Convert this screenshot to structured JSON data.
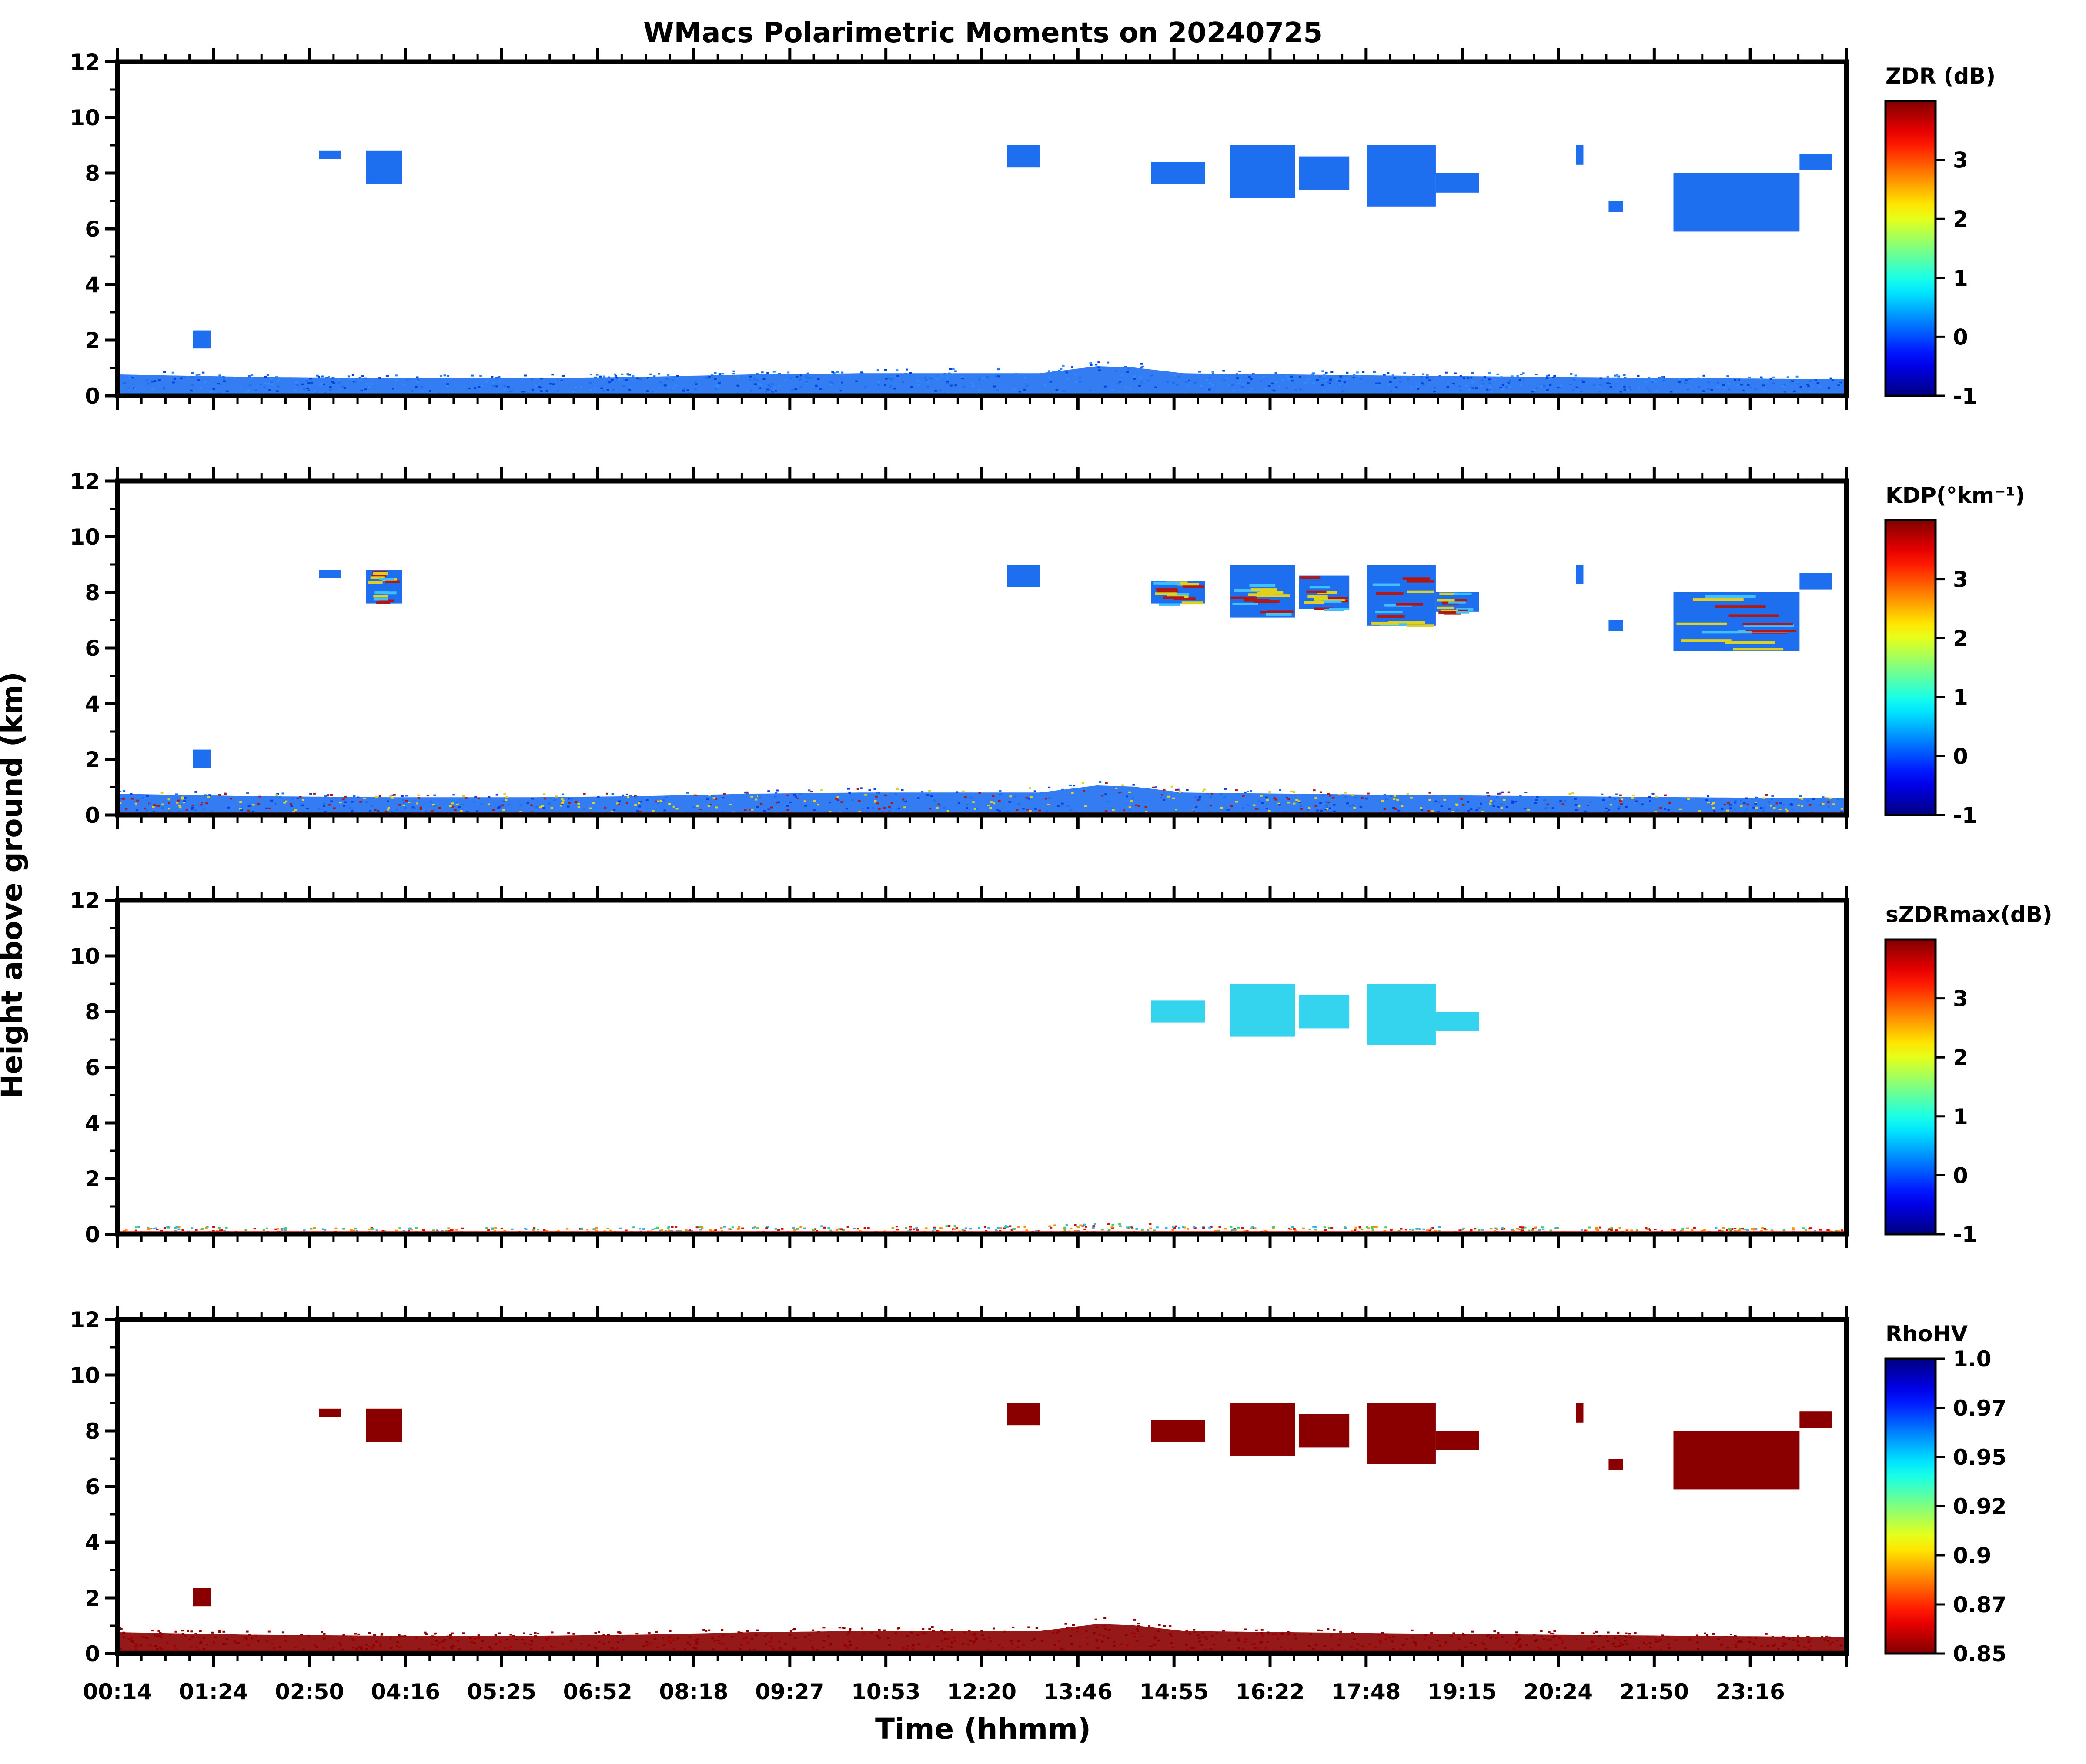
{
  "title": "WMacs Polarimetric Moments on 20240725",
  "xlabel": "Time (hhmm)",
  "ylabel": "Height above ground (km)",
  "chart_data": {
    "type": "heatmap",
    "x_tick_labels": [
      "00:14",
      "01:24",
      "02:50",
      "04:16",
      "05:25",
      "06:52",
      "08:18",
      "09:27",
      "10:53",
      "12:20",
      "13:46",
      "14:55",
      "16:22",
      "17:48",
      "19:15",
      "20:24",
      "21:50",
      "23:16"
    ],
    "y_tick_labels": [
      "0",
      "2",
      "4",
      "6",
      "8",
      "10",
      "12"
    ],
    "ylim": [
      0,
      12
    ],
    "panels": [
      {
        "id": "zdr",
        "colorbar_label": "ZDR (dB)",
        "colorbar_ticks": [
          "3",
          "2",
          "1",
          "0",
          "-1"
        ],
        "colormap": "jet",
        "clim": [
          -1,
          4
        ],
        "fill_color": "#1e6ef0",
        "noise_color": "#3a7ff5",
        "near_ground_colors": [
          "#1e6ef0",
          "#2f8cff",
          "#0044dd"
        ]
      },
      {
        "id": "kdp",
        "colorbar_label": "KDP(°km⁻¹)",
        "colorbar_ticks": [
          "3",
          "2",
          "1",
          "0",
          "-1"
        ],
        "colormap": "jet",
        "clim": [
          -1,
          4
        ],
        "fill_color": "#1e6ef0",
        "noise_color": "#1e6ef0",
        "near_ground_colors": [
          "#0a3fe0",
          "#b01818",
          "#1e6ef0",
          "#e0d020"
        ]
      },
      {
        "id": "szdrmax",
        "colorbar_label": "sZDRmax(dB)",
        "colorbar_ticks": [
          "3",
          "2",
          "1",
          "0",
          "-1"
        ],
        "colormap": "jet",
        "clim": [
          -1,
          4
        ],
        "fill_color": "#34d3ee",
        "noise_color": "#2fb8ff",
        "near_ground_colors": [
          "#ff9000",
          "#d01010",
          "#27b7f0",
          "#40d060"
        ]
      },
      {
        "id": "rhohv",
        "colorbar_label": "RhoHV",
        "colorbar_ticks": [
          "1.0",
          "0.97",
          "0.95",
          "0.92",
          "0.9",
          "0.87",
          "0.85"
        ],
        "colormap": "jet_r",
        "clim": [
          0.85,
          1.0
        ],
        "fill_color": "#8a0000",
        "noise_color": "#8a0000",
        "near_ground_colors": [
          "#8a0000",
          "#a00000"
        ]
      }
    ],
    "cloud_regions": [
      {
        "t": [
          3.0,
          3.3
        ],
        "h": [
          8.5,
          8.8
        ]
      },
      {
        "t": [
          3.65,
          4.15
        ],
        "h": [
          7.6,
          8.8
        ]
      },
      {
        "t": [
          1.25,
          1.5
        ],
        "h": [
          1.7,
          2.35
        ]
      },
      {
        "t": [
          12.55,
          13.0
        ],
        "h": [
          8.2,
          9.0
        ]
      },
      {
        "t": [
          14.55,
          15.3
        ],
        "h": [
          7.6,
          8.4
        ]
      },
      {
        "t": [
          15.65,
          16.55
        ],
        "h": [
          7.1,
          9.0
        ]
      },
      {
        "t": [
          16.6,
          17.3
        ],
        "h": [
          7.4,
          8.6
        ]
      },
      {
        "t": [
          17.55,
          18.5
        ],
        "h": [
          6.8,
          9.0
        ]
      },
      {
        "t": [
          18.5,
          19.1
        ],
        "h": [
          7.3,
          8.0
        ]
      },
      {
        "t": [
          20.45,
          20.55
        ],
        "h": [
          8.3,
          9.0
        ]
      },
      {
        "t": [
          20.9,
          21.1
        ],
        "h": [
          6.6,
          7.0
        ]
      },
      {
        "t": [
          21.8,
          23.55
        ],
        "h": [
          5.9,
          8.0
        ]
      },
      {
        "t": [
          23.55,
          24.0
        ],
        "h": [
          8.1,
          8.7
        ]
      }
    ],
    "boundary_layer_top_km": [
      [
        0.2,
        0.9
      ],
      [
        2.0,
        0.8
      ],
      [
        4.0,
        0.75
      ],
      [
        6.0,
        0.75
      ],
      [
        7.5,
        0.8
      ],
      [
        9.0,
        0.9
      ],
      [
        10.5,
        0.95
      ],
      [
        12.0,
        0.95
      ],
      [
        13.0,
        0.95
      ],
      [
        13.8,
        1.25
      ],
      [
        14.3,
        1.2
      ],
      [
        15.0,
        0.95
      ],
      [
        16.5,
        0.9
      ],
      [
        18.0,
        0.85
      ],
      [
        20.0,
        0.8
      ],
      [
        22.0,
        0.75
      ],
      [
        24.2,
        0.7
      ]
    ]
  }
}
